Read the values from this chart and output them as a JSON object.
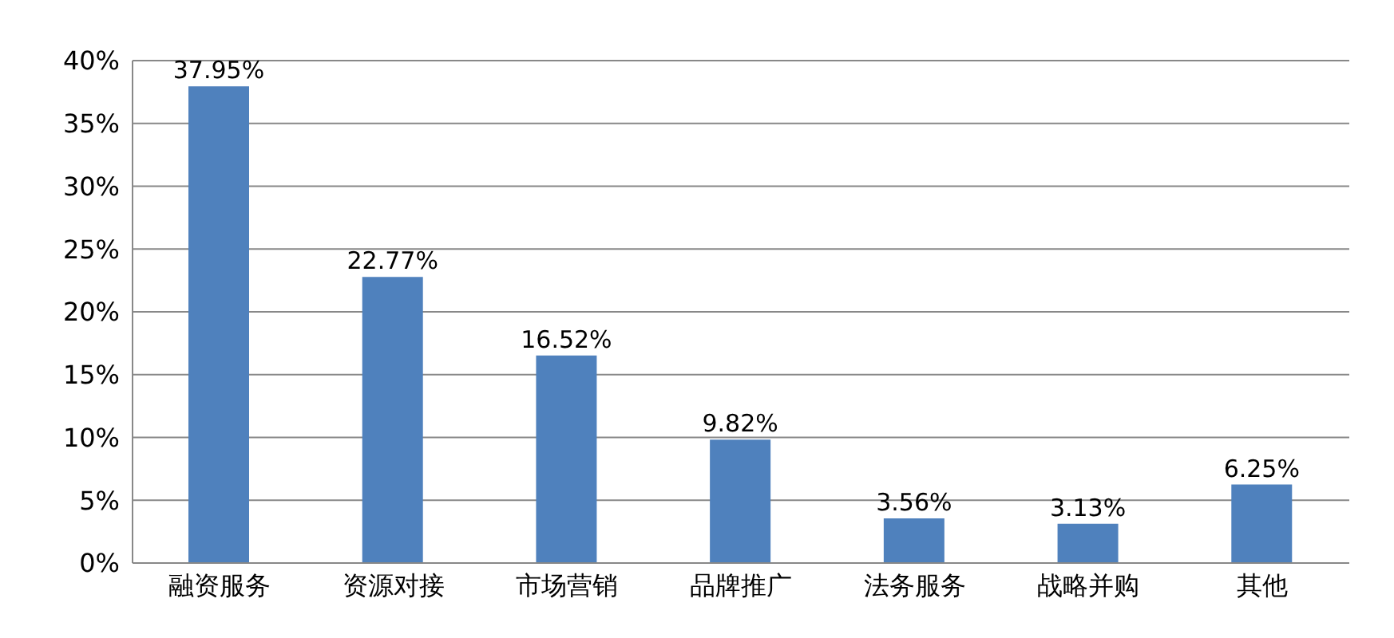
{
  "chart_data": {
    "type": "bar",
    "categories": [
      "融资服务",
      "资源对接",
      "市场营销",
      "品牌推广",
      "法务服务",
      "战略并购",
      "其他"
    ],
    "values": [
      37.95,
      22.77,
      16.52,
      9.82,
      3.56,
      3.13,
      6.25
    ],
    "value_labels": [
      "37.95%",
      "22.77%",
      "16.52%",
      "9.82%",
      "3.56%",
      "3.13%",
      "6.25%"
    ],
    "color": "#4f81bd",
    "ylim": [
      0,
      40
    ],
    "yticks": [
      {
        "value": 0,
        "label": "0%"
      },
      {
        "value": 5,
        "label": "5%"
      },
      {
        "value": 10,
        "label": "10%"
      },
      {
        "value": 15,
        "label": "15%"
      },
      {
        "value": 20,
        "label": "20%"
      },
      {
        "value": 25,
        "label": "25%"
      },
      {
        "value": 30,
        "label": "30%"
      },
      {
        "value": 35,
        "label": "35%"
      },
      {
        "value": 40,
        "label": "40%"
      }
    ],
    "grid": "y",
    "legend": false
  }
}
